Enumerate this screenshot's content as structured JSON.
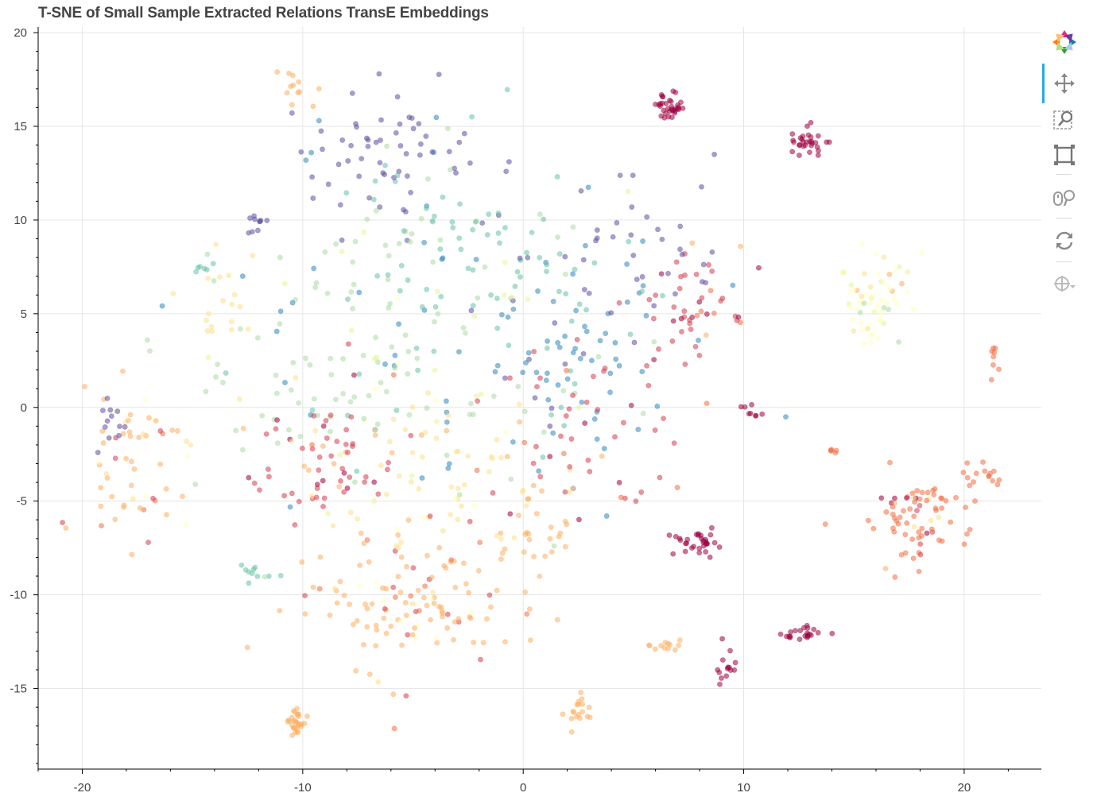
{
  "chart_data": {
    "type": "scatter",
    "title": "T-SNE of Small Sample Extracted Relations TransE Embeddings",
    "xlabel": "",
    "ylabel": "",
    "xlim": [
      -22,
      23.5
    ],
    "ylim": [
      -19.3,
      20.3
    ],
    "xticks": [
      -20,
      -10,
      0,
      10,
      20
    ],
    "yticks": [
      20,
      15,
      10,
      5,
      0,
      -5,
      -10,
      -15
    ],
    "xtick_labels": [
      "-20",
      "-10",
      "0",
      "10",
      "20"
    ],
    "ytick_labels": [
      "20",
      "15",
      "10",
      "5",
      "0",
      "-5",
      "-10",
      "-15"
    ],
    "grid": true,
    "legend": "none",
    "palette": [
      "#9e0142",
      "#d53e4f",
      "#f46d43",
      "#fdae61",
      "#fee08b",
      "#ffffbf",
      "#e6f598",
      "#abdda4",
      "#66c2a5",
      "#3288bd",
      "#5e4fa2"
    ],
    "clusters": [
      {
        "cx": 6.6,
        "cy": 16.0,
        "sx": 0.4,
        "sy": 0.4,
        "n": 34,
        "color": 0
      },
      {
        "cx": 12.9,
        "cy": 14.1,
        "sx": 0.4,
        "sy": 0.35,
        "n": 30,
        "color": 0
      },
      {
        "cx": 7.7,
        "cy": -7.2,
        "sx": 0.5,
        "sy": 0.4,
        "n": 32,
        "color": 0
      },
      {
        "cx": 12.8,
        "cy": -12.1,
        "sx": 0.5,
        "sy": 0.25,
        "n": 22,
        "color": 0
      },
      {
        "cx": 9.3,
        "cy": -13.8,
        "sx": 0.35,
        "sy": 1.0,
        "n": 14,
        "color": 0
      },
      {
        "cx": 10.2,
        "cy": -0.2,
        "sx": 0.3,
        "sy": 0.2,
        "n": 8,
        "color": 0
      },
      {
        "cx": 15.8,
        "cy": 5.8,
        "sx": 0.8,
        "sy": 1.2,
        "n": 60,
        "color": 5
      },
      {
        "cx": 18.1,
        "cy": -6.2,
        "sx": 1.2,
        "sy": 1.2,
        "n": 75,
        "color": 2
      },
      {
        "cx": 21.2,
        "cy": -3.5,
        "sx": 0.5,
        "sy": 0.5,
        "n": 14,
        "color": 2
      },
      {
        "cx": 21.3,
        "cy": 2.5,
        "sx": 0.1,
        "sy": 0.4,
        "n": 8,
        "color": 2
      },
      {
        "cx": 14.0,
        "cy": -2.3,
        "sx": 0.15,
        "sy": 0.05,
        "n": 5,
        "color": 2
      },
      {
        "cx": 7.7,
        "cy": 5.5,
        "sx": 1.3,
        "sy": 1.7,
        "n": 45,
        "color": 1
      },
      {
        "cx": -17.5,
        "cy": -3.3,
        "sx": 1.4,
        "sy": 2.0,
        "n": 60,
        "color": 3
      },
      {
        "cx": -18.7,
        "cy": -0.6,
        "sx": 0.5,
        "sy": 0.6,
        "n": 12,
        "color": 10
      },
      {
        "cx": -10.3,
        "cy": -16.8,
        "sx": 0.3,
        "sy": 0.4,
        "n": 30,
        "color": 3
      },
      {
        "cx": 2.6,
        "cy": -16.3,
        "sx": 0.4,
        "sy": 0.4,
        "n": 18,
        "color": 3
      },
      {
        "cx": -5.0,
        "cy": -10.5,
        "sx": 2.5,
        "sy": 2.0,
        "n": 130,
        "color": 3
      },
      {
        "cx": 0.5,
        "cy": -7.0,
        "sx": 0.8,
        "sy": 1.2,
        "n": 22,
        "color": 3
      },
      {
        "cx": 6.5,
        "cy": -12.8,
        "sx": 0.6,
        "sy": 0.15,
        "n": 12,
        "color": 3
      },
      {
        "cx": -10.4,
        "cy": 17.3,
        "sx": 0.4,
        "sy": 0.7,
        "n": 12,
        "color": 3
      },
      {
        "cx": -12.0,
        "cy": -8.7,
        "sx": 0.4,
        "sy": 0.4,
        "n": 10,
        "color": 8
      },
      {
        "cx": -12.2,
        "cy": 9.9,
        "sx": 0.4,
        "sy": 0.3,
        "n": 10,
        "color": 10
      },
      {
        "cx": -6.0,
        "cy": 13.5,
        "sx": 2.5,
        "sy": 1.8,
        "n": 70,
        "color": 10
      },
      {
        "cx": -7.5,
        "cy": 3.0,
        "sx": 4.0,
        "sy": 4.0,
        "n": 140,
        "color": 7
      },
      {
        "cx": -9.5,
        "cy": -3.5,
        "sx": 1.8,
        "sy": 1.8,
        "n": 60,
        "color": 1
      },
      {
        "cx": 2.0,
        "cy": 3.0,
        "sx": 3.0,
        "sy": 3.5,
        "n": 100,
        "color": 9
      },
      {
        "cx": -2.0,
        "cy": 8.0,
        "sx": 3.5,
        "sy": 2.5,
        "n": 80,
        "color": 8
      },
      {
        "cx": -4.5,
        "cy": -3.5,
        "sx": 3.0,
        "sy": 2.5,
        "n": 70,
        "color": 4
      },
      {
        "cx": 3.5,
        "cy": -1.5,
        "sx": 2.5,
        "sy": 2.5,
        "n": 50,
        "color": 1
      },
      {
        "cx": 5.5,
        "cy": 9.0,
        "sx": 2.0,
        "sy": 2.0,
        "n": 30,
        "color": 10
      },
      {
        "cx": -13.5,
        "cy": 5.0,
        "sx": 1.0,
        "sy": 1.5,
        "n": 20,
        "color": 4
      },
      {
        "cx": -14.8,
        "cy": 7.5,
        "sx": 0.3,
        "sy": 0.2,
        "n": 6,
        "color": 8
      }
    ]
  },
  "toolbar": {
    "tools": [
      "bokeh-logo-icon",
      "pan-icon",
      "box-zoom-icon",
      "box-select-icon",
      "wheel-zoom-icon",
      "reset-icon",
      "hover-icon"
    ]
  }
}
